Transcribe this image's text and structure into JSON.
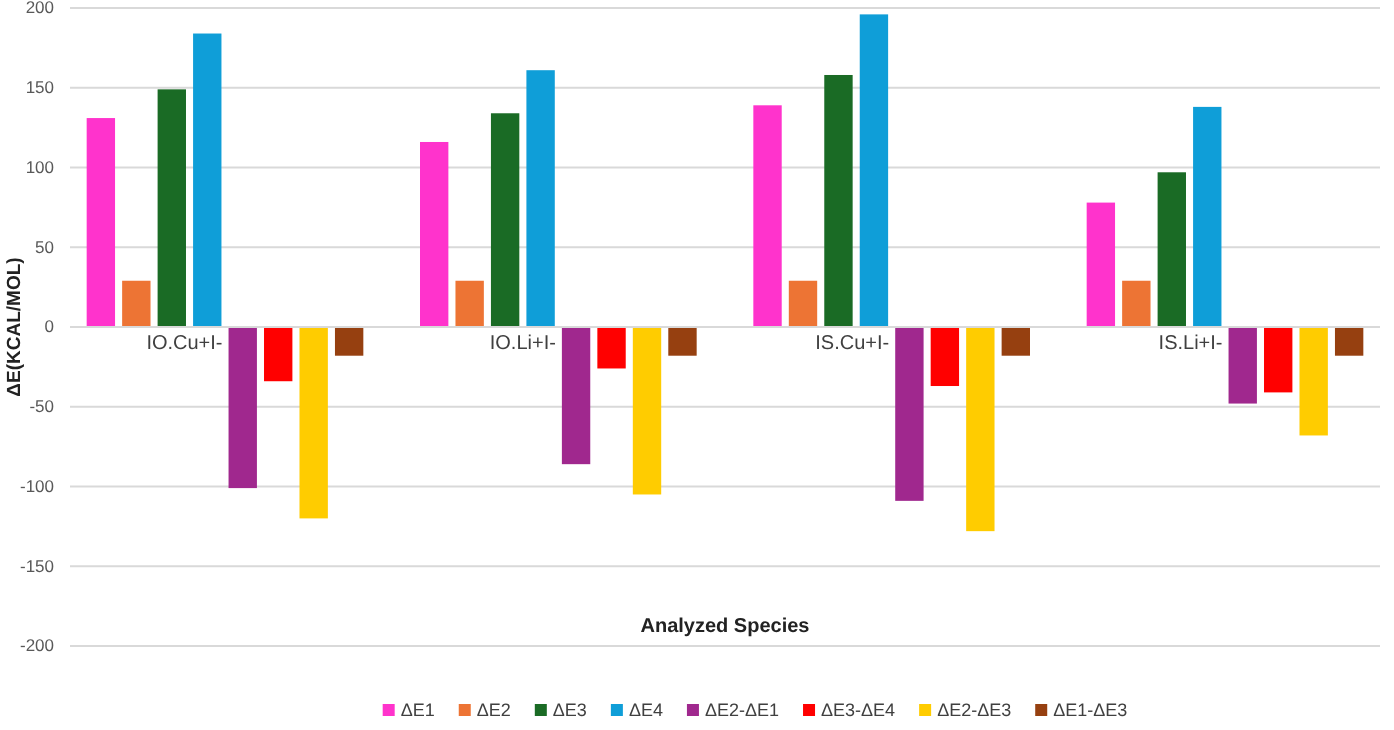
{
  "chart_data": {
    "type": "bar",
    "xlabel": "Analyzed Species",
    "ylabel": "ΔE(KCAL/MOL)",
    "categories": [
      "IO.Cu+I-",
      "IO.Li+I-",
      "IS.Cu+I-",
      "IS.Li+I-"
    ],
    "series": [
      {
        "name": "ΔE1",
        "color": "#ff33cc",
        "values": [
          131,
          116,
          139,
          78
        ]
      },
      {
        "name": "ΔE2",
        "color": "#ed7434",
        "values": [
          29,
          29,
          29,
          29
        ]
      },
      {
        "name": "ΔE3",
        "color": "#1a6b25",
        "values": [
          149,
          134,
          158,
          97
        ]
      },
      {
        "name": "ΔE4",
        "color": "#0f9ed8",
        "values": [
          184,
          161,
          196,
          138
        ]
      },
      {
        "name": "ΔE2-ΔE1",
        "color": "#a0288e",
        "values": [
          -101,
          -86,
          -109,
          -48
        ]
      },
      {
        "name": "ΔE3-ΔE4",
        "color": "#ff0000",
        "values": [
          -34,
          -26,
          -37,
          -41
        ]
      },
      {
        "name": "ΔE2-ΔE3",
        "color": "#ffcc00",
        "values": [
          -120,
          -105,
          -128,
          -68
        ]
      },
      {
        "name": "ΔE1-ΔE3",
        "color": "#964010",
        "values": [
          -18,
          -18,
          -18,
          -18
        ]
      }
    ],
    "ylim": [
      -200,
      200
    ],
    "yticks": [
      -200,
      -150,
      -100,
      -50,
      0,
      50,
      100,
      150,
      200
    ],
    "grid": "y",
    "legend": "bottom"
  }
}
